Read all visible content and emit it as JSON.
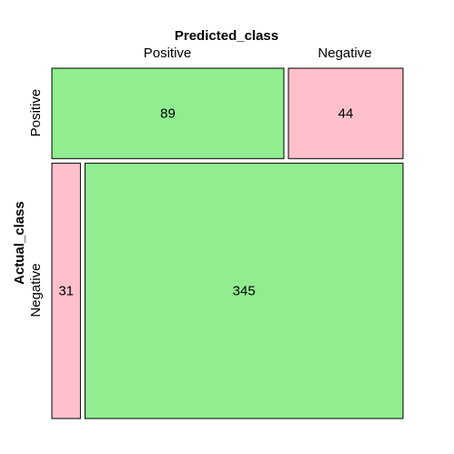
{
  "chart_data": {
    "type": "mosaic",
    "xlabel": "Predicted_class",
    "ylabel": "Actual_class",
    "predicted_classes": [
      "Positive",
      "Negative"
    ],
    "actual_classes": [
      "Positive",
      "Negative"
    ],
    "cells": [
      {
        "actual": "Positive",
        "predicted": "Positive",
        "value": 89,
        "label": "89",
        "correct": true
      },
      {
        "actual": "Positive",
        "predicted": "Negative",
        "value": 44,
        "label": "44",
        "correct": false
      },
      {
        "actual": "Negative",
        "predicted": "Positive",
        "value": 31,
        "label": "31",
        "correct": false
      },
      {
        "actual": "Negative",
        "predicted": "Negative",
        "value": 345,
        "label": "345",
        "correct": true
      }
    ],
    "colors": {
      "correct": "#90EE90",
      "incorrect": "#FFC0CB"
    }
  }
}
